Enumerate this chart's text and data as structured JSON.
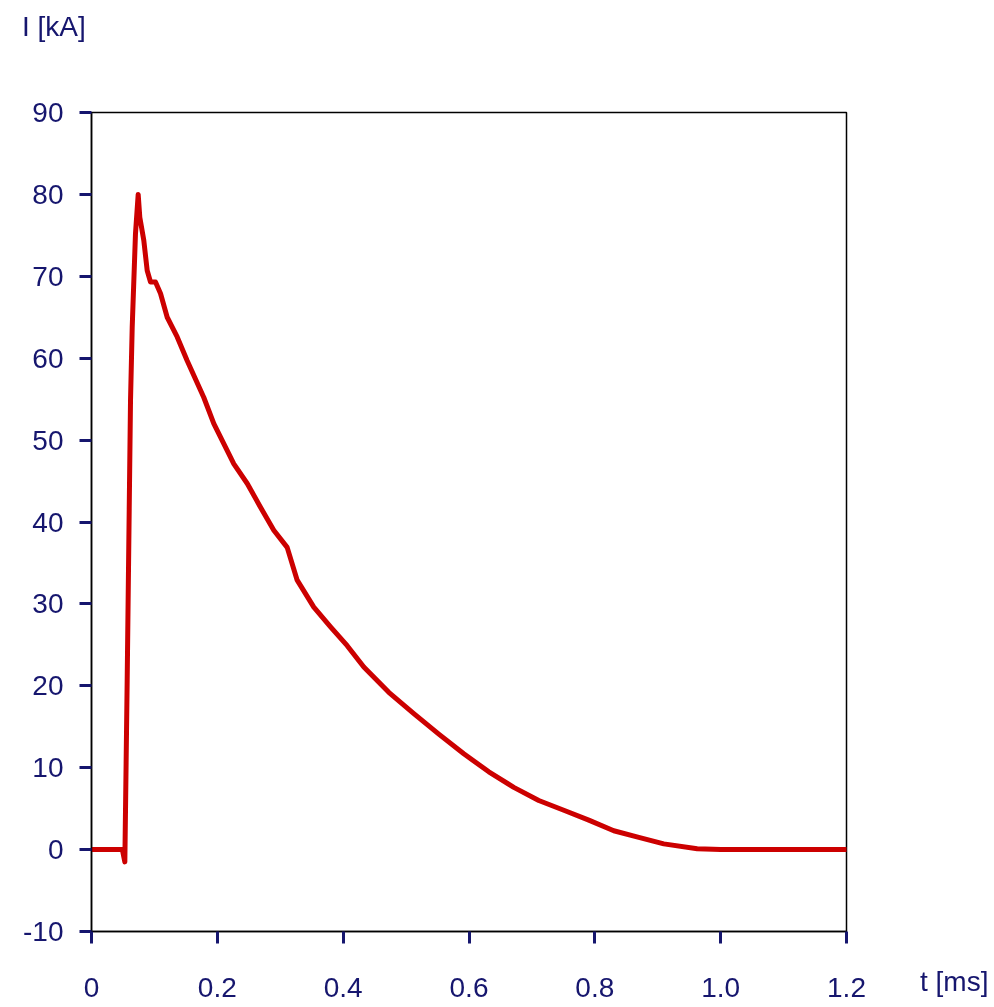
{
  "chart_data": {
    "type": "line",
    "xlabel": "t [ms]",
    "ylabel": "I [kA]",
    "x": [
      0,
      0.049,
      0.053,
      0.0567,
      0.062,
      0.0647,
      0.0699,
      0.0742,
      0.0768,
      0.0831,
      0.0885,
      0.0938,
      0.1017,
      0.1097,
      0.1203,
      0.1362,
      0.1521,
      0.1785,
      0.1944,
      0.2262,
      0.2475,
      0.2686,
      0.2897,
      0.311,
      0.3269,
      0.3533,
      0.3799,
      0.4064,
      0.4328,
      0.4725,
      0.5123,
      0.552,
      0.5917,
      0.6315,
      0.6712,
      0.7109,
      0.7507,
      0.7904,
      0.8301,
      0.8699,
      0.9096,
      0.9627,
      1.0,
      1.2
    ],
    "series": [
      {
        "color": "#cc0000",
        "values": [
          0,
          0,
          -1.5,
          20.6,
          54.8,
          63.8,
          75.2,
          80,
          77.2,
          74.4,
          70.7,
          69.3,
          69.3,
          67.9,
          65.0,
          62.6,
          59.7,
          55.2,
          52.0,
          47.1,
          44.7,
          41.8,
          39.0,
          36.9,
          32.9,
          29.6,
          27.2,
          24.9,
          22.3,
          19.2,
          16.6,
          14.1,
          11.7,
          9.5,
          7.6,
          6.0,
          4.8,
          3.6,
          2.3,
          1.5,
          0.7,
          0.1,
          0,
          0
        ]
      }
    ],
    "xlim": [
      0,
      1.2
    ],
    "ylim": [
      -10,
      90
    ],
    "xticks": [
      0,
      0.2,
      0.4,
      0.6,
      0.8,
      {
        "value": 1,
        "label": "1.0"
      },
      1.2
    ],
    "yticks": [
      -10,
      0,
      10,
      20,
      30,
      40,
      50,
      60,
      70,
      80,
      90
    ],
    "grid": false,
    "line_style": "solid"
  }
}
